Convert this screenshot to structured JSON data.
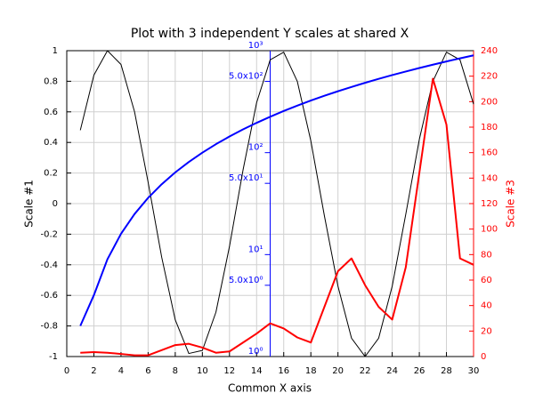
{
  "chart_data": {
    "type": "line",
    "title": "Plot with 3 independent Y scales at shared X",
    "x_label": "Common X axis",
    "y_label": "Scale #1",
    "y2_label": "Scale #3",
    "x": [
      1,
      2,
      3,
      4,
      5,
      6,
      7,
      8,
      9,
      10,
      11,
      12,
      13,
      14,
      15,
      16,
      17,
      18,
      19,
      20,
      21,
      22,
      23,
      24,
      25,
      26,
      27,
      28,
      29,
      30
    ],
    "xlim": [
      0,
      30
    ],
    "xticks": [
      0,
      2,
      4,
      6,
      8,
      10,
      12,
      14,
      16,
      18,
      20,
      22,
      24,
      26,
      28,
      30
    ],
    "ylim": [
      -1,
      1
    ],
    "yticks": [
      -1,
      -0.8,
      -0.6,
      -0.4,
      -0.2,
      0,
      0.2,
      0.4,
      0.6,
      0.8,
      1
    ],
    "y2lim": [
      0,
      240
    ],
    "y2ticks": [
      0,
      20,
      40,
      60,
      80,
      100,
      120,
      140,
      160,
      180,
      200,
      220,
      240
    ],
    "y2color": "#ff0000",
    "y3lim": [
      1,
      1000
    ],
    "y3log": true,
    "y3color": "#0000ff",
    "y3ticks": [
      {
        "value": 1,
        "label": "10⁰"
      },
      {
        "value": 5,
        "label": "5.0x10⁰"
      },
      {
        "value": 10,
        "label": "10¹"
      },
      {
        "value": 50,
        "label": "5.0x10¹"
      },
      {
        "value": 100,
        "label": "10²"
      },
      {
        "value": 500,
        "label": "5.0x10²"
      },
      {
        "value": 1000,
        "label": "10³"
      }
    ],
    "grid": true,
    "series": [
      {
        "color": "#000000",
        "axis": "y",
        "values": [
          0.48,
          0.84,
          1.0,
          0.91,
          0.6,
          0.14,
          -0.35,
          -0.76,
          -0.98,
          -0.96,
          -0.71,
          -0.28,
          0.22,
          0.66,
          0.94,
          0.99,
          0.8,
          0.41,
          -0.08,
          -0.54,
          -0.88,
          -1.0,
          -0.88,
          -0.54,
          -0.07,
          0.42,
          0.8,
          0.99,
          0.94,
          0.65
        ]
      },
      {
        "color": "#0000ff",
        "axis": "y3",
        "values": [
          2,
          4,
          9,
          16,
          25,
          36,
          49,
          64,
          81,
          100,
          121,
          144,
          169,
          196,
          225,
          256,
          289,
          324,
          361,
          400,
          441,
          484,
          529,
          576,
          625,
          676,
          729,
          784,
          841,
          900
        ]
      },
      {
        "color": "#ff0000",
        "axis": "y2",
        "values": [
          3,
          3.5,
          3,
          2,
          1,
          1,
          5,
          9,
          10,
          7,
          3,
          4,
          11,
          18,
          26,
          22,
          15,
          11,
          39,
          67,
          77,
          56,
          39,
          29,
          70,
          144,
          218,
          182,
          77,
          72
        ]
      }
    ]
  }
}
